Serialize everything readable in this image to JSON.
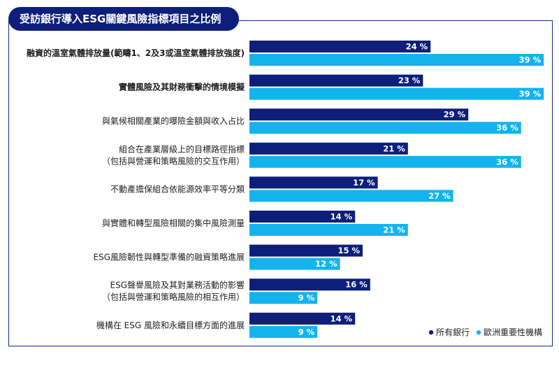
{
  "title": "受訪銀行導入ESG關鍵風險指標項目之比例",
  "colors": {
    "title_bg": "#0d1f7a",
    "series_all": "#0d1f7a",
    "series_eu": "#13b4ee",
    "frame": "#1a2a8a"
  },
  "chart_data": {
    "type": "bar",
    "orientation": "horizontal",
    "title": "受訪銀行導入ESG關鍵風險指標項目之比例",
    "categories": [
      {
        "lines": [
          "融資的溫室氣體排放量(範疇1、2及3或溫室氣體排放強度)"
        ],
        "bold": true
      },
      {
        "lines": [
          "實體風險及其財務衝擊的情境模擬"
        ],
        "bold": true
      },
      {
        "lines": [
          "與氣候相關產業的曝險金額與收入占比"
        ],
        "bold": false
      },
      {
        "lines": [
          "組合在產業層級上的目標路徑指標",
          "（包括與營運和策略風險的交互作用）"
        ],
        "bold": false
      },
      {
        "lines": [
          "不動產擔保組合依能源效率平等分類"
        ],
        "bold": false
      },
      {
        "lines": [
          "與實體和轉型風險相關的集中風險測量"
        ],
        "bold": false
      },
      {
        "lines": [
          "ESG風險韌性與轉型準備的融資策略進展"
        ],
        "bold": false
      },
      {
        "lines": [
          "ESG聲譽風險及其對業務活動的影響",
          "（包括與營運和策略風險的相互作用）"
        ],
        "bold": false
      },
      {
        "lines": [
          "機構在 ESG 風險和永續目標方面的進展"
        ],
        "bold": false
      }
    ],
    "series": [
      {
        "name": "所有銀行",
        "values": [
          24,
          23,
          29,
          21,
          17,
          14,
          15,
          16,
          14
        ]
      },
      {
        "name": "歐洲重要性機構",
        "values": [
          39,
          39,
          36,
          36,
          27,
          21,
          12,
          9,
          9
        ]
      }
    ],
    "value_suffix": " %",
    "xlim": [
      0,
      40
    ],
    "legend_position": "bottom-right",
    "grid": false
  }
}
